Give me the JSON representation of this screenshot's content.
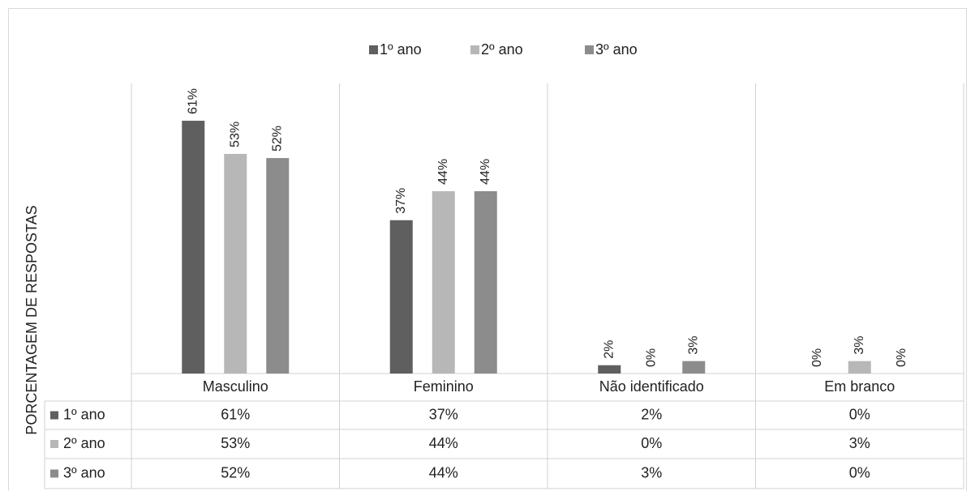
{
  "chart_data": {
    "type": "bar",
    "y_label": "PORCENTAGEM DE RESPOSTAS",
    "categories": [
      "Masculino",
      "Feminino",
      "Não identificado",
      "Em branco"
    ],
    "series": [
      {
        "name": "1º ano",
        "color": "#5f5f5f",
        "values": [
          61,
          37,
          2,
          0
        ],
        "value_labels": [
          "61%",
          "37%",
          "2%",
          "0%"
        ]
      },
      {
        "name": "2º ano",
        "color": "#b7b7b7",
        "values": [
          53,
          44,
          0,
          3
        ],
        "value_labels": [
          "53%",
          "44%",
          "0%",
          "3%"
        ]
      },
      {
        "name": "3º ano",
        "color": "#8c8c8c",
        "values": [
          52,
          44,
          3,
          0
        ],
        "value_labels": [
          "52%",
          "44%",
          "3%",
          "0%"
        ]
      }
    ],
    "ylim": [
      0,
      70
    ],
    "legend": "top",
    "data_table": true
  }
}
